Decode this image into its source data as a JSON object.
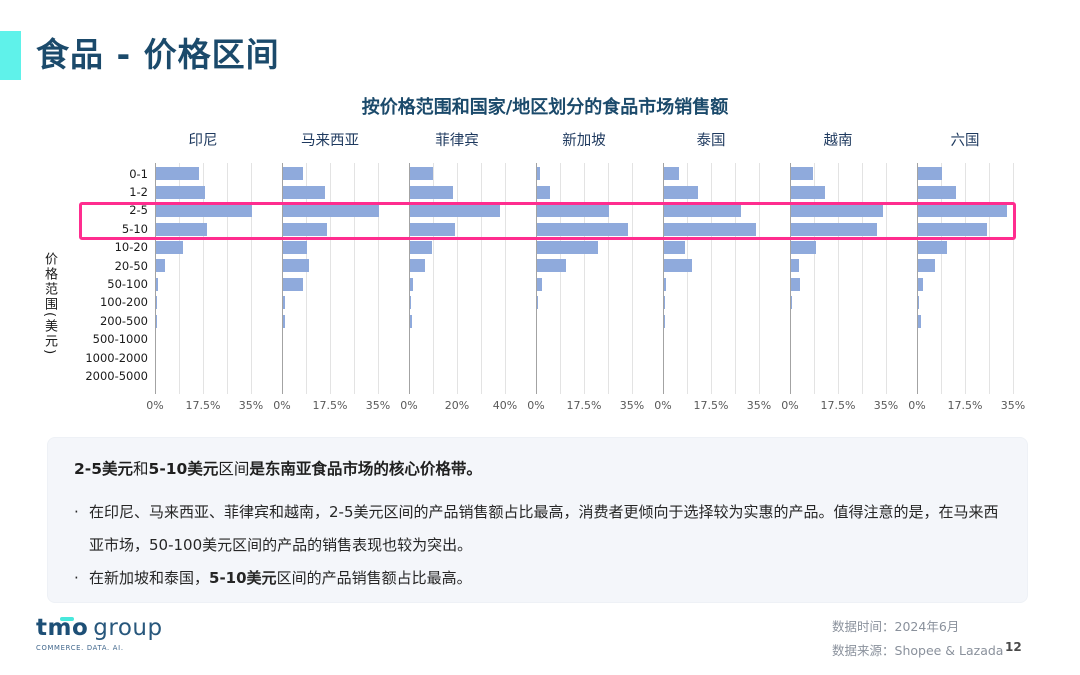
{
  "header": {
    "title": "食品 - 价格区间"
  },
  "chart_data": {
    "type": "bar",
    "orientation": "horizontal",
    "title": "按价格范围和国家/地区划分的食品市场销售额",
    "ylabel": "价格范围(美元)",
    "bar_color": "#8FAADC",
    "grid": true,
    "categories": [
      "0-1",
      "1-2",
      "2-5",
      "5-10",
      "10-20",
      "20-50",
      "50-100",
      "100-200",
      "200-500",
      "500-1000",
      "1000-2000",
      "2000-5000"
    ],
    "highlight": {
      "rows": [
        "2-5",
        "5-10"
      ],
      "color": "#FF2D8F"
    },
    "panels": [
      {
        "name": "印尼",
        "xmax": 35,
        "ticks": [
          "0%",
          "17.5%",
          "35%"
        ],
        "values": [
          15.7,
          17.9,
          35.0,
          18.6,
          9.8,
          3.4,
          0.8,
          0.4,
          0.4,
          0,
          0,
          0
        ]
      },
      {
        "name": "马来西亚",
        "xmax": 35,
        "ticks": [
          "0%",
          "17.5%",
          "35%"
        ],
        "values": [
          7.2,
          15.2,
          34.9,
          16.0,
          8.8,
          9.4,
          7.3,
          0.8,
          0.8,
          0,
          0,
          0
        ]
      },
      {
        "name": "菲律宾",
        "xmax": 40,
        "ticks": [
          "0%",
          "20%",
          "40%"
        ],
        "values": [
          9.4,
          18.1,
          37.5,
          18.9,
          9.2,
          6.3,
          1.1,
          0.3,
          0.7,
          0,
          0,
          0
        ]
      },
      {
        "name": "新加坡",
        "xmax": 35,
        "ticks": [
          "0%",
          "17.5%",
          "35%"
        ],
        "values": [
          1.0,
          4.6,
          26.1,
          33.3,
          22.1,
          10.4,
          1.8,
          0.5,
          0,
          0,
          0,
          0
        ]
      },
      {
        "name": "泰国",
        "xmax": 35,
        "ticks": [
          "0%",
          "17.5%",
          "35%"
        ],
        "values": [
          5.5,
          12.3,
          28.0,
          33.5,
          7.7,
          10.1,
          0.9,
          0.3,
          0.5,
          0,
          0,
          0
        ]
      },
      {
        "name": "越南",
        "xmax": 35,
        "ticks": [
          "0%",
          "17.5%",
          "35%"
        ],
        "values": [
          8.1,
          12.3,
          33.5,
          31.4,
          9.2,
          2.8,
          3.4,
          0.4,
          0,
          0,
          0,
          0
        ]
      },
      {
        "name": "六国",
        "xmax": 35,
        "ticks": [
          "0%",
          "17.5%",
          "35%"
        ],
        "values": [
          8.9,
          14.0,
          32.6,
          25.0,
          10.5,
          6.1,
          1.7,
          0.3,
          1.2,
          0,
          0,
          0
        ]
      }
    ]
  },
  "insights": {
    "headline_segments": [
      {
        "text": "2-5美元",
        "bold": true
      },
      {
        "text": "和",
        "bold": false
      },
      {
        "text": "5-10美元",
        "bold": true
      },
      {
        "text": "区间",
        "bold": false
      },
      {
        "text": "是东南亚食品市场的核心价格带。",
        "bold": true
      }
    ],
    "bullets": [
      {
        "segments": [
          {
            "text": "在印尼、马来西亚、菲律宾和越南，2-5美元区间的产品销售额占比最高，消费者更倾向于选择较为实惠的产品。值得注意的是，在马来西亚市场，50-100美元区间的产品的销售表现也较为突出。",
            "bold": false
          }
        ]
      },
      {
        "segments": [
          {
            "text": "在新加坡和泰国，",
            "bold": false
          },
          {
            "text": "5-10美元",
            "bold": true
          },
          {
            "text": "区间的产品销售额占比最高。",
            "bold": false
          }
        ]
      }
    ]
  },
  "footer": {
    "logo": {
      "brand": "tmo",
      "suffix": "group",
      "tagline": "COMMERCE. DATA. AI."
    },
    "data_time_label": "数据时间：",
    "data_time": "2024年6月",
    "data_source_label": "数据来源：",
    "data_source": "Shopee & Lazada",
    "page_number": "12"
  }
}
